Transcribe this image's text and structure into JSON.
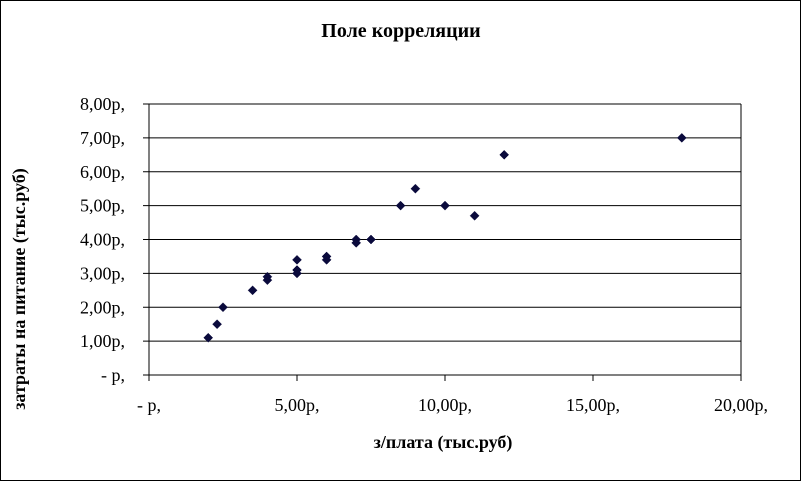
{
  "chart_data": {
    "type": "scatter",
    "title": "Поле корреляции",
    "xlabel": "з/плата (тыс.руб)",
    "ylabel": "затраты на питание (тыс.руб)",
    "xlim": [
      0,
      20
    ],
    "ylim": [
      0,
      8
    ],
    "x_ticks": [
      0,
      5,
      10,
      15,
      20
    ],
    "x_tick_labels": [
      "-  р,",
      "5,00р,",
      "10,00р,",
      "15,00р,",
      "20,00р,"
    ],
    "y_ticks": [
      0,
      1,
      2,
      3,
      4,
      5,
      6,
      7,
      8
    ],
    "y_tick_labels": [
      "-  р,",
      "1,00р,",
      "2,00р,",
      "3,00р,",
      "4,00р,",
      "5,00р,",
      "6,00р,",
      "7,00р,",
      "8,00р,"
    ],
    "grid": "horizontal",
    "legend": "none",
    "marker": "diamond",
    "marker_color": "#0a0a3c",
    "gridline_color": "#000000",
    "points": [
      {
        "x": 2.0,
        "y": 1.1
      },
      {
        "x": 2.3,
        "y": 1.5
      },
      {
        "x": 2.5,
        "y": 2.0
      },
      {
        "x": 3.5,
        "y": 2.5
      },
      {
        "x": 4.0,
        "y": 2.8
      },
      {
        "x": 4.0,
        "y": 2.9
      },
      {
        "x": 5.0,
        "y": 3.0
      },
      {
        "x": 5.0,
        "y": 3.1
      },
      {
        "x": 5.0,
        "y": 3.4
      },
      {
        "x": 6.0,
        "y": 3.4
      },
      {
        "x": 6.0,
        "y": 3.5
      },
      {
        "x": 7.0,
        "y": 3.9
      },
      {
        "x": 7.0,
        "y": 4.0
      },
      {
        "x": 7.5,
        "y": 4.0
      },
      {
        "x": 8.5,
        "y": 5.0
      },
      {
        "x": 9.0,
        "y": 5.5
      },
      {
        "x": 10.0,
        "y": 5.0
      },
      {
        "x": 11.0,
        "y": 4.7
      },
      {
        "x": 12.0,
        "y": 6.5
      },
      {
        "x": 18.0,
        "y": 7.0
      }
    ]
  }
}
